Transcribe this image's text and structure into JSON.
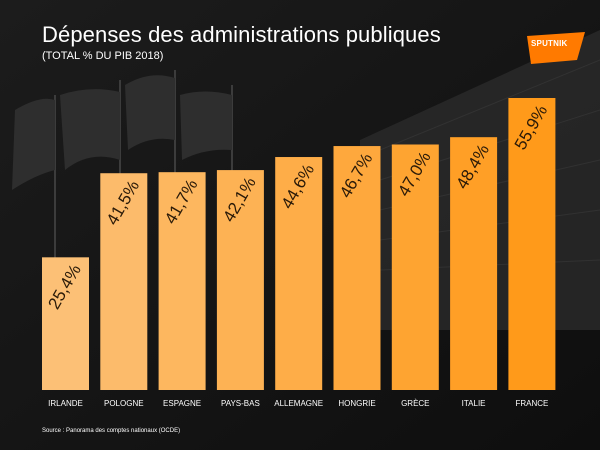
{
  "title": "Dépenses des administrations publiques",
  "subtitle": "(TOTAL % DU PIB 2018)",
  "logo": {
    "text": "SPUTNIK",
    "color": "#ff7a00"
  },
  "source": "Source : Panorama des comptes nationaux (OCDE)",
  "colors": {
    "bar_light": "#fcc076",
    "bar_dark": "#ff9a1a",
    "label_text": "#2a1a08"
  },
  "chart_data": {
    "type": "bar",
    "title": "Dépenses des administrations publiques",
    "subtitle": "(TOTAL % DU PIB 2018)",
    "xlabel": "",
    "ylabel": "",
    "unit": "% du PIB",
    "categories": [
      "IRLANDE",
      "POLOGNE",
      "ESPAGNE",
      "PAYS-BAS",
      "ALLEMAGNE",
      "HONGRIE",
      "GRÈCE",
      "ITALIE",
      "FRANCE"
    ],
    "values": [
      25.4,
      41.5,
      41.7,
      42.1,
      44.6,
      46.7,
      47.0,
      48.4,
      55.9
    ],
    "value_labels": [
      "25,4%",
      "41,5%",
      "41,7%",
      "42,1%",
      "44,6%",
      "46,7%",
      "47,0%",
      "48,4%",
      "55,9%"
    ],
    "ylim": [
      0,
      60
    ],
    "grid": false,
    "legend": "none"
  }
}
